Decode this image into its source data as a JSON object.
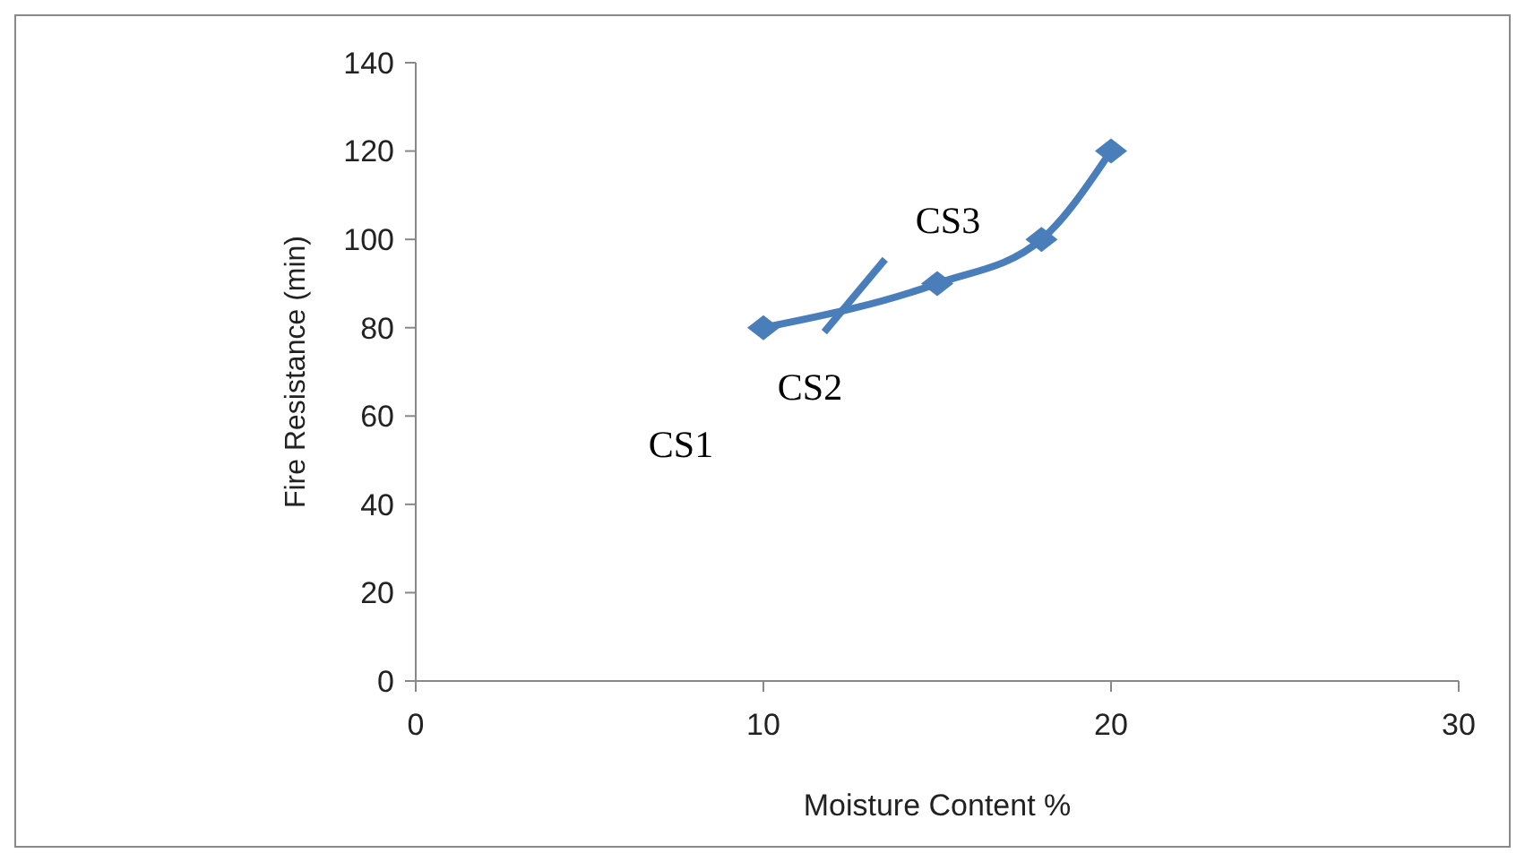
{
  "chart_data": {
    "type": "line",
    "xlabel": "Moisture Content %",
    "ylabel": "Fire Resistance (min)",
    "x": [
      10,
      15,
      18,
      20
    ],
    "series": [
      {
        "color": "#4a7ebb",
        "values": [
          80,
          90,
          100,
          120
        ]
      }
    ],
    "xlim": [
      0,
      30
    ],
    "xticks": [
      0,
      10,
      20,
      30
    ],
    "ylim": [
      0,
      140
    ],
    "yticks": [
      0,
      20,
      40,
      60,
      80,
      100,
      120,
      140
    ],
    "marker": "diamond",
    "grid": false,
    "annotations": [
      "CS1",
      "CS2",
      "CS3"
    ]
  }
}
